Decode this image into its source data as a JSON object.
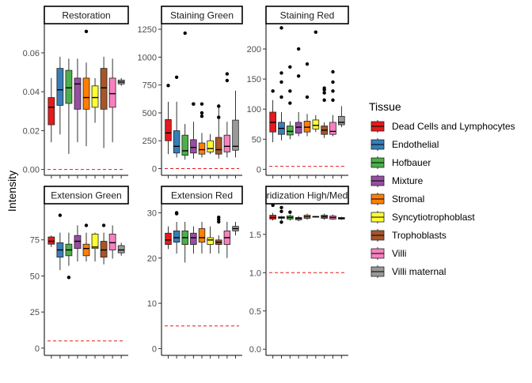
{
  "chart_data": {
    "type": "boxplot",
    "ylabel": "Intensity",
    "legend": {
      "title": "Tissue",
      "placement": "right",
      "entries": [
        {
          "name": "Dead Cells and Lymphocytes",
          "color": "#e41a1c"
        },
        {
          "name": "Endothelial",
          "color": "#377eb8"
        },
        {
          "name": "Hofbauer",
          "color": "#4daf4a"
        },
        {
          "name": "Mixture",
          "color": "#984ea3"
        },
        {
          "name": "Stromal",
          "color": "#ff7f00"
        },
        {
          "name": "Syncytiotrophoblast",
          "color": "#ffff33"
        },
        {
          "name": "Trophoblasts",
          "color": "#a65628"
        },
        {
          "name": "Villi",
          "color": "#f781bf"
        },
        {
          "name": "Villi maternal",
          "color": "#999999"
        }
      ]
    },
    "threshold_line_color": "#e41a1c",
    "facets": [
      {
        "title": "Restoration",
        "ylim": [
          -0.003,
          0.075
        ],
        "yticks": [
          0.0,
          0.02,
          0.04,
          0.06
        ],
        "ytick_labels": [
          "0.00",
          "0.02",
          "0.04",
          "0.06"
        ],
        "threshold": 0.0,
        "boxes": [
          {
            "min": 0.014,
            "q1": 0.023,
            "median": 0.032,
            "q3": 0.037,
            "max": 0.047,
            "outliers": []
          },
          {
            "min": 0.018,
            "q1": 0.033,
            "median": 0.041,
            "q3": 0.052,
            "max": 0.058,
            "outliers": []
          },
          {
            "min": 0.008,
            "q1": 0.034,
            "median": 0.042,
            "q3": 0.051,
            "max": 0.057,
            "outliers": []
          },
          {
            "min": 0.014,
            "q1": 0.031,
            "median": 0.044,
            "q3": 0.047,
            "max": 0.057,
            "outliers": []
          },
          {
            "min": 0.012,
            "q1": 0.031,
            "median": 0.037,
            "q3": 0.047,
            "max": 0.055,
            "outliers": [
              0.071
            ]
          },
          {
            "min": 0.024,
            "q1": 0.032,
            "median": 0.037,
            "q3": 0.043,
            "max": 0.047,
            "outliers": []
          },
          {
            "min": 0.011,
            "q1": 0.031,
            "median": 0.042,
            "q3": 0.052,
            "max": 0.058,
            "outliers": []
          },
          {
            "min": 0.014,
            "q1": 0.032,
            "median": 0.039,
            "q3": 0.047,
            "max": 0.057,
            "outliers": []
          },
          {
            "min": 0.043,
            "q1": 0.044,
            "median": 0.045,
            "q3": 0.046,
            "max": 0.047,
            "outliers": []
          }
        ]
      },
      {
        "title": "Staining Green",
        "ylim": [
          -60,
          1300
        ],
        "yticks": [
          0,
          250,
          500,
          750,
          1000,
          1250
        ],
        "ytick_labels": [
          "0",
          "250",
          "500",
          "750",
          "1000",
          "1250"
        ],
        "threshold": 0,
        "boxes": [
          {
            "min": 130,
            "q1": 250,
            "median": 320,
            "q3": 440,
            "max": 600,
            "outliers": [
              745
            ]
          },
          {
            "min": 100,
            "q1": 140,
            "median": 200,
            "q3": 340,
            "max": 600,
            "outliers": [
              820
            ]
          },
          {
            "min": 80,
            "q1": 120,
            "median": 160,
            "q3": 300,
            "max": 400,
            "outliers": [
              1215
            ]
          },
          {
            "min": 90,
            "q1": 140,
            "median": 190,
            "q3": 260,
            "max": 420,
            "outliers": [
              580,
              580
            ]
          },
          {
            "min": 100,
            "q1": 130,
            "median": 170,
            "q3": 230,
            "max": 320,
            "outliers": [
              580,
              470,
              500
            ]
          },
          {
            "min": 130,
            "q1": 150,
            "median": 180,
            "q3": 250,
            "max": 310,
            "outliers": []
          },
          {
            "min": 90,
            "q1": 130,
            "median": 170,
            "q3": 280,
            "max": 580,
            "outliers": [
              560,
              460
            ]
          },
          {
            "min": 100,
            "q1": 150,
            "median": 200,
            "q3": 300,
            "max": 420,
            "outliers": [
              850,
              790
            ]
          },
          {
            "min": 100,
            "q1": 165,
            "median": 200,
            "q3": 435,
            "max": 700,
            "outliers": []
          }
        ]
      },
      {
        "title": "Staining Red",
        "ylim": [
          -10,
          242
        ],
        "yticks": [
          0,
          50,
          100,
          150,
          200
        ],
        "ytick_labels": [
          "0",
          "50",
          "100",
          "150",
          "200"
        ],
        "threshold": 5,
        "boxes": [
          {
            "min": 45,
            "q1": 62,
            "median": 78,
            "q3": 95,
            "max": 115,
            "outliers": [
              130
            ]
          },
          {
            "min": 48,
            "q1": 58,
            "median": 68,
            "q3": 78,
            "max": 95,
            "outliers": [
              235,
              160,
              145,
              120
            ]
          },
          {
            "min": 50,
            "q1": 57,
            "median": 63,
            "q3": 72,
            "max": 80,
            "outliers": [
              170,
              130,
              110
            ]
          },
          {
            "min": 55,
            "q1": 60,
            "median": 70,
            "q3": 78,
            "max": 95,
            "outliers": [
              200,
              155
            ]
          },
          {
            "min": 55,
            "q1": 62,
            "median": 70,
            "q3": 80,
            "max": 92,
            "outliers": [
              175,
              120
            ]
          },
          {
            "min": 62,
            "q1": 67,
            "median": 73,
            "q3": 82,
            "max": 90,
            "outliers": [
              228
            ]
          },
          {
            "min": 52,
            "q1": 58,
            "median": 65,
            "q3": 72,
            "max": 78,
            "outliers": [
              135,
              132,
              127,
              115
            ]
          },
          {
            "min": 55,
            "q1": 58,
            "median": 63,
            "q3": 78,
            "max": 90,
            "outliers": [
              162,
              145,
              130,
              115
            ]
          },
          {
            "min": 70,
            "q1": 74,
            "median": 78,
            "q3": 88,
            "max": 105,
            "outliers": []
          }
        ]
      },
      {
        "title": "Extension Green",
        "ylim": [
          -5,
          100
        ],
        "yticks": [
          0,
          25,
          50,
          75
        ],
        "ytick_labels": [
          "0",
          "25",
          "50",
          "75"
        ],
        "threshold": 5,
        "boxes": [
          {
            "min": 70,
            "q1": 72,
            "median": 74,
            "q3": 77,
            "max": 78,
            "outliers": []
          },
          {
            "min": 54,
            "q1": 63,
            "median": 68,
            "q3": 73,
            "max": 80,
            "outliers": [
              92
            ]
          },
          {
            "min": 57,
            "q1": 64,
            "median": 68,
            "q3": 72,
            "max": 80,
            "outliers": [
              49
            ]
          },
          {
            "min": 60,
            "q1": 69,
            "median": 74,
            "q3": 78,
            "max": 85,
            "outliers": []
          },
          {
            "min": 60,
            "q1": 64,
            "median": 69,
            "q3": 72,
            "max": 80,
            "outliers": [
              85
            ]
          },
          {
            "min": 60,
            "q1": 69,
            "median": 70,
            "q3": 79,
            "max": 80,
            "outliers": []
          },
          {
            "min": 58,
            "q1": 63,
            "median": 68,
            "q3": 74,
            "max": 80,
            "outliers": [
              85
            ]
          },
          {
            "min": 62,
            "q1": 68,
            "median": 73,
            "q3": 79,
            "max": 85,
            "outliers": []
          },
          {
            "min": 64,
            "q1": 66,
            "median": 68,
            "q3": 71,
            "max": 73,
            "outliers": []
          }
        ]
      },
      {
        "title": "Extension Red",
        "ylim": [
          -1.5,
          32
        ],
        "yticks": [
          0,
          10,
          20,
          30
        ],
        "ytick_labels": [
          "0",
          "10",
          "20",
          "30"
        ],
        "threshold": 5,
        "boxes": [
          {
            "min": 22,
            "q1": 23,
            "median": 24,
            "q3": 25.5,
            "max": 27,
            "outliers": []
          },
          {
            "min": 21,
            "q1": 23.5,
            "median": 24.5,
            "q3": 26,
            "max": 28,
            "outliers": [
              30,
              29.8
            ]
          },
          {
            "min": 19,
            "q1": 23,
            "median": 24.5,
            "q3": 26,
            "max": 28,
            "outliers": []
          },
          {
            "min": 21,
            "q1": 23,
            "median": 24.5,
            "q3": 25.5,
            "max": 27,
            "outliers": []
          },
          {
            "min": 21,
            "q1": 23.5,
            "median": 24.5,
            "q3": 26.5,
            "max": 28,
            "outliers": []
          },
          {
            "min": 21,
            "q1": 23,
            "median": 24,
            "q3": 24.5,
            "max": 27,
            "outliers": []
          },
          {
            "min": 21,
            "q1": 23,
            "median": 23.5,
            "q3": 24,
            "max": 25,
            "outliers": [
              29,
              28.5,
              28
            ]
          },
          {
            "min": 20,
            "q1": 23,
            "median": 24.5,
            "q3": 26,
            "max": 28,
            "outliers": []
          },
          {
            "min": 25,
            "q1": 26,
            "median": 26.5,
            "q3": 27,
            "max": 28,
            "outliers": []
          }
        ]
      },
      {
        "title": "ridization High/Med",
        "ylim": [
          -0.08,
          1.9
        ],
        "yticks": [
          0.0,
          0.5,
          1.0,
          1.5
        ],
        "ytick_labels": [
          "0.0",
          "0.5",
          "1.0",
          "1.5"
        ],
        "threshold": 1.0,
        "boxes": [
          {
            "min": 1.68,
            "q1": 1.7,
            "median": 1.72,
            "q3": 1.75,
            "max": 1.78,
            "outliers": [
              1.88
            ]
          },
          {
            "min": 1.69,
            "q1": 1.71,
            "median": 1.72,
            "q3": 1.73,
            "max": 1.74,
            "outliers": [
              1.85,
              1.8,
              1.66
            ]
          },
          {
            "min": 1.68,
            "q1": 1.7,
            "median": 1.72,
            "q3": 1.74,
            "max": 1.76,
            "outliers": [
              1.79
            ]
          },
          {
            "min": 1.67,
            "q1": 1.69,
            "median": 1.71,
            "q3": 1.72,
            "max": 1.74,
            "outliers": []
          },
          {
            "min": 1.69,
            "q1": 1.71,
            "median": 1.73,
            "q3": 1.75,
            "max": 1.77,
            "outliers": []
          },
          {
            "min": 1.72,
            "q1": 1.725,
            "median": 1.73,
            "q3": 1.735,
            "max": 1.74,
            "outliers": []
          },
          {
            "min": 1.69,
            "q1": 1.71,
            "median": 1.73,
            "q3": 1.75,
            "max": 1.77,
            "outliers": []
          },
          {
            "min": 1.69,
            "q1": 1.7,
            "median": 1.72,
            "q3": 1.74,
            "max": 1.76,
            "outliers": []
          },
          {
            "min": 1.69,
            "q1": 1.7,
            "median": 1.71,
            "q3": 1.72,
            "max": 1.73,
            "outliers": []
          }
        ]
      }
    ]
  }
}
